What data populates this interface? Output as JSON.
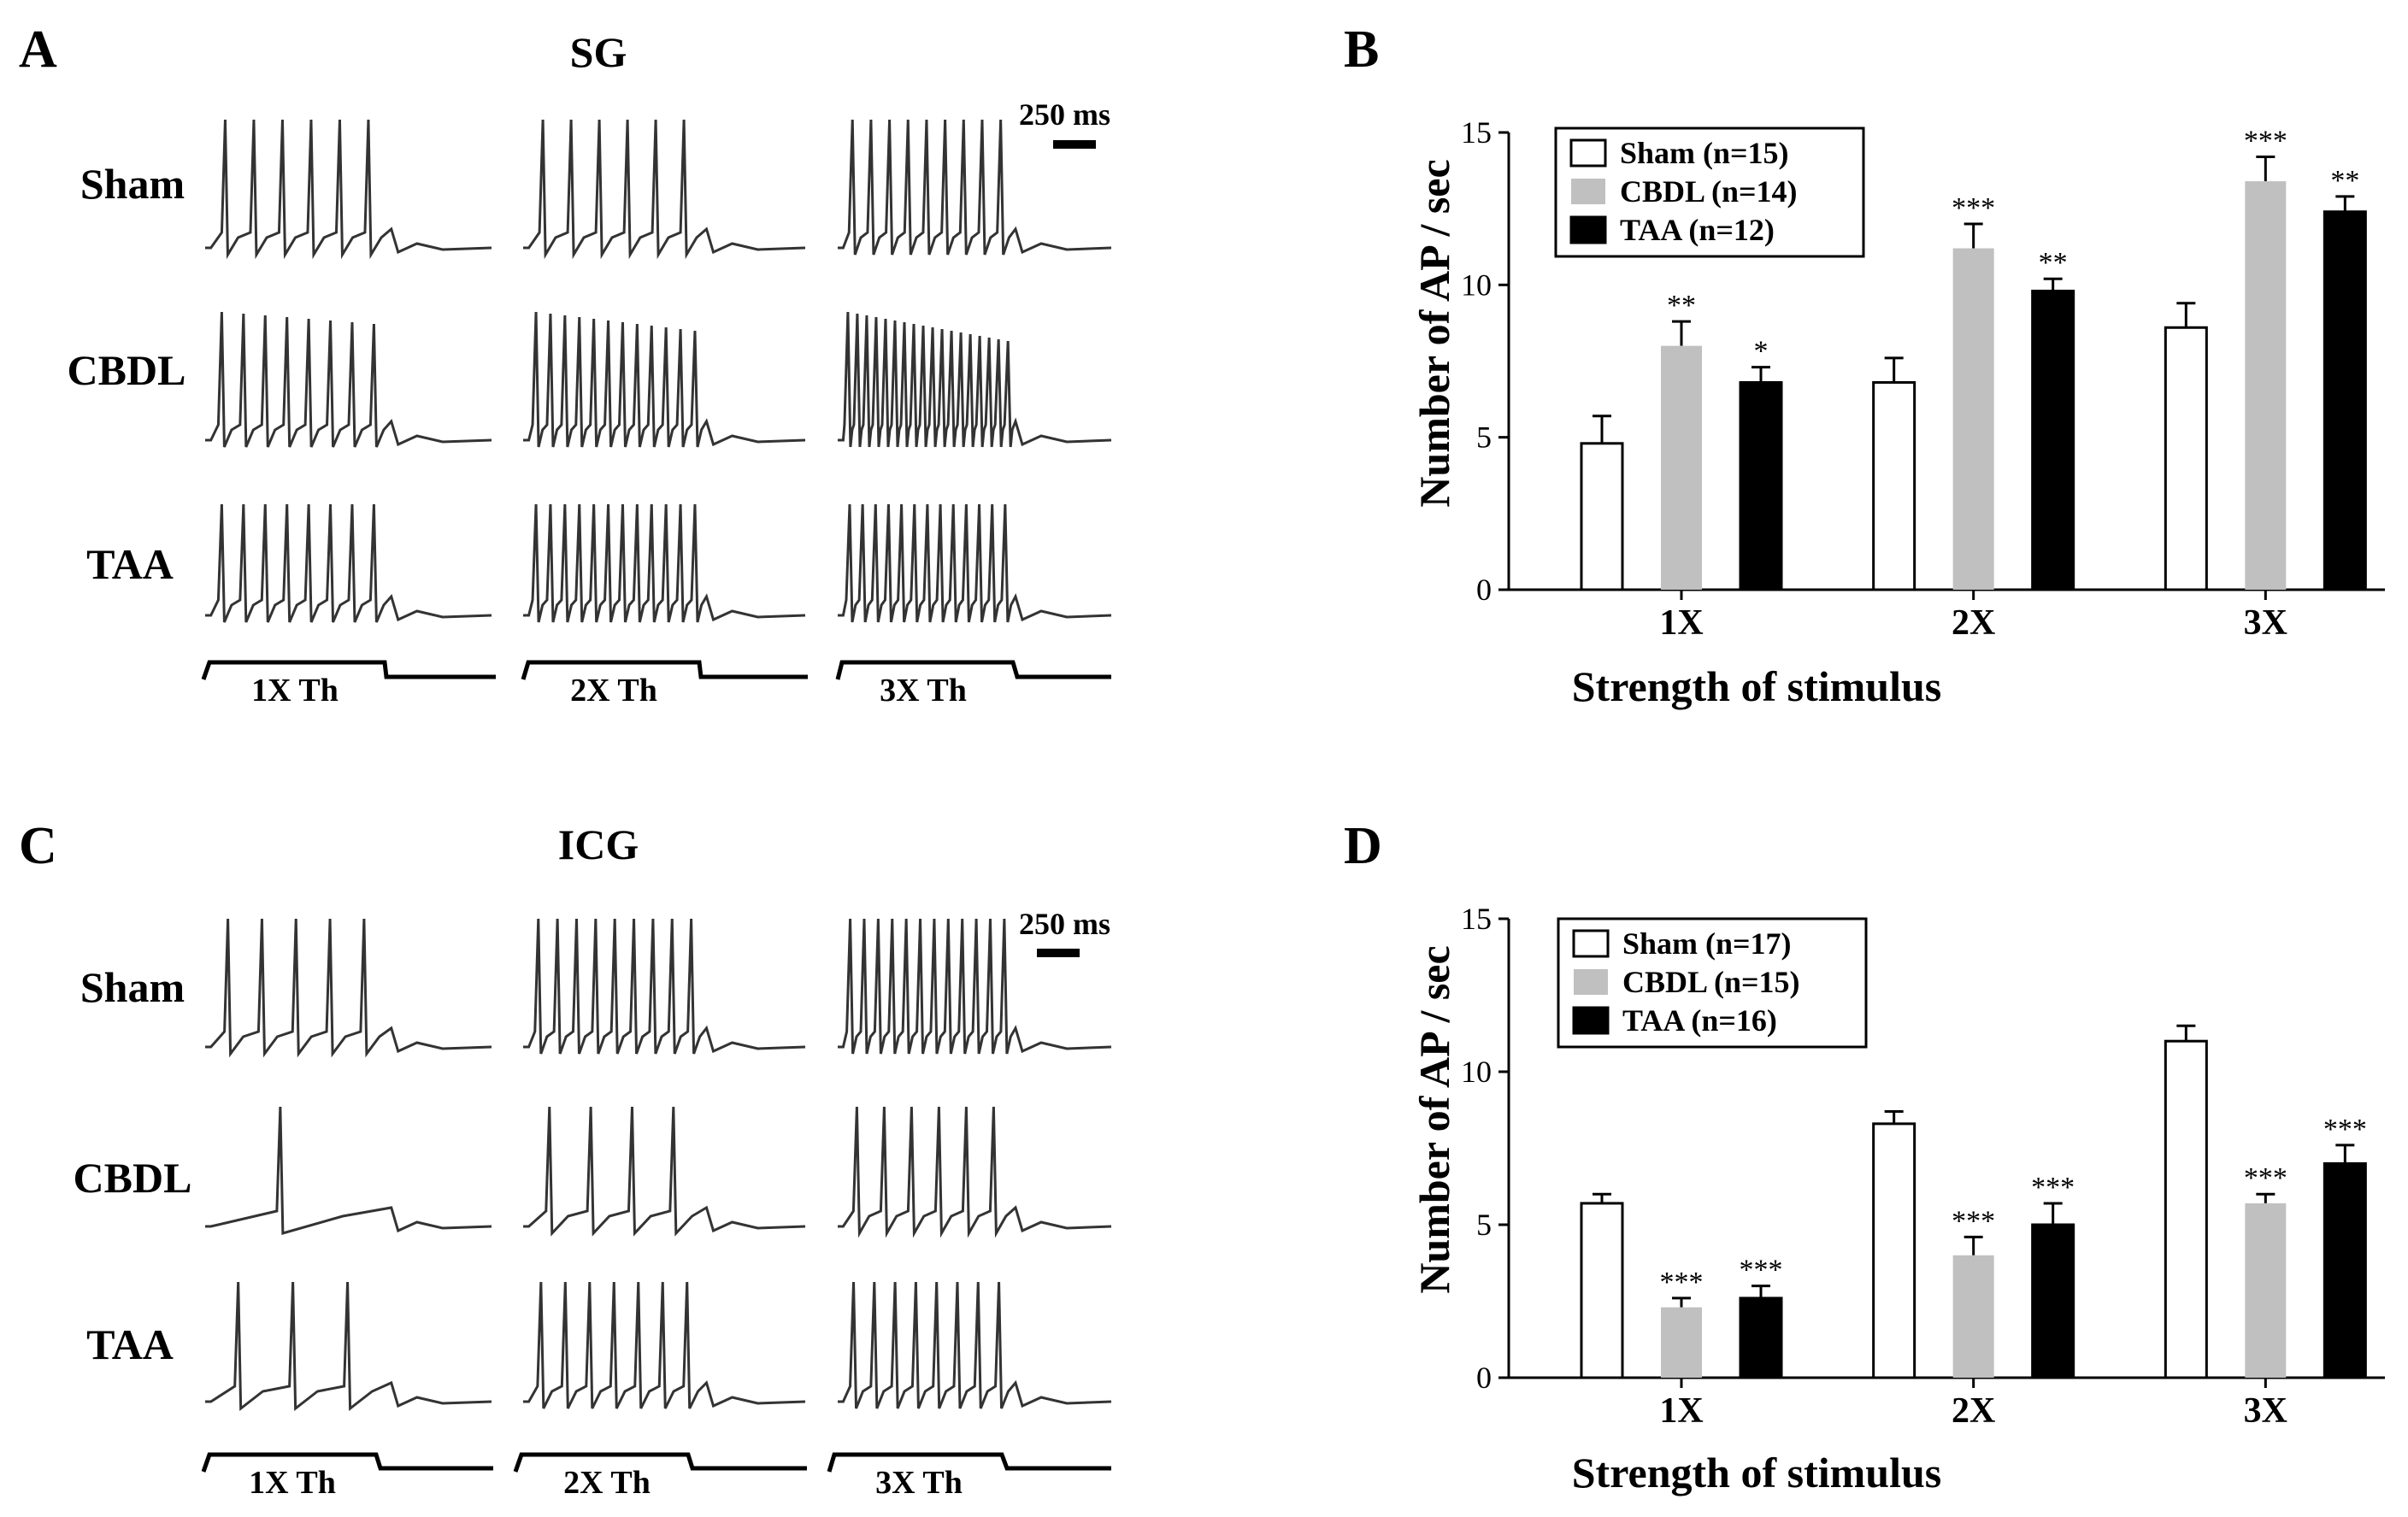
{
  "panels": {
    "A": {
      "label": "A",
      "title": "SG",
      "scalebar": "250 ms"
    },
    "B": {
      "label": "B"
    },
    "C": {
      "label": "C",
      "title": "ICG",
      "scalebar": "250 ms"
    },
    "D": {
      "label": "D"
    }
  },
  "trace_rows": [
    "Sham",
    "CBDL",
    "TAA"
  ],
  "stim_labels": [
    "1X Th",
    "2X Th",
    "3X Th"
  ],
  "trace_spike_counts": {
    "SG": [
      [
        6,
        6,
        9
      ],
      [
        8,
        12,
        18
      ],
      [
        8,
        12,
        13
      ]
    ],
    "ICG": [
      [
        5,
        9,
        12
      ],
      [
        1,
        4,
        6
      ],
      [
        3,
        7,
        8
      ]
    ]
  },
  "colors": {
    "sham": "#ffffff",
    "cbdl": "#c0c0c0",
    "taa": "#000000",
    "trace": "#333333"
  },
  "chart_data": [
    {
      "id": "B",
      "type": "bar",
      "title": "",
      "xlabel": "Strength of stimulus",
      "ylabel": "Number of AP / sec",
      "ylim": [
        0,
        15
      ],
      "yticks": [
        0,
        5,
        10,
        15
      ],
      "categories": [
        "1X",
        "2X",
        "3X"
      ],
      "legend_position": "top-left",
      "series": [
        {
          "name": "Sham (n=15)",
          "color": "#ffffff",
          "values": [
            4.8,
            6.8,
            8.6
          ],
          "errors": [
            0.9,
            0.8,
            0.8
          ],
          "sig": [
            "",
            "",
            ""
          ]
        },
        {
          "name": "CBDL (n=14)",
          "color": "#c0c0c0",
          "values": [
            8.0,
            11.2,
            13.4
          ],
          "errors": [
            0.8,
            0.8,
            0.8
          ],
          "sig": [
            "**",
            "***",
            "***"
          ]
        },
        {
          "name": "TAA (n=12)",
          "color": "#000000",
          "values": [
            6.8,
            9.8,
            12.4
          ],
          "errors": [
            0.5,
            0.4,
            0.5
          ],
          "sig": [
            "*",
            "**",
            "**"
          ]
        }
      ]
    },
    {
      "id": "D",
      "type": "bar",
      "title": "",
      "xlabel": "Strength of stimulus",
      "ylabel": "Number of AP / sec",
      "ylim": [
        0,
        15
      ],
      "yticks": [
        0,
        5,
        10,
        15
      ],
      "categories": [
        "1X",
        "2X",
        "3X"
      ],
      "legend_position": "top-left",
      "series": [
        {
          "name": "Sham (n=17)",
          "color": "#ffffff",
          "values": [
            5.7,
            8.3,
            11.0
          ],
          "errors": [
            0.3,
            0.4,
            0.5
          ],
          "sig": [
            "",
            "",
            ""
          ]
        },
        {
          "name": "CBDL (n=15)",
          "color": "#c0c0c0",
          "values": [
            2.3,
            4.0,
            5.7
          ],
          "errors": [
            0.3,
            0.6,
            0.3
          ],
          "sig": [
            "***",
            "***",
            "***"
          ]
        },
        {
          "name": "TAA (n=16)",
          "color": "#000000",
          "values": [
            2.6,
            5.0,
            7.0
          ],
          "errors": [
            0.4,
            0.7,
            0.6
          ],
          "sig": [
            "***",
            "***",
            "***"
          ]
        }
      ]
    }
  ]
}
